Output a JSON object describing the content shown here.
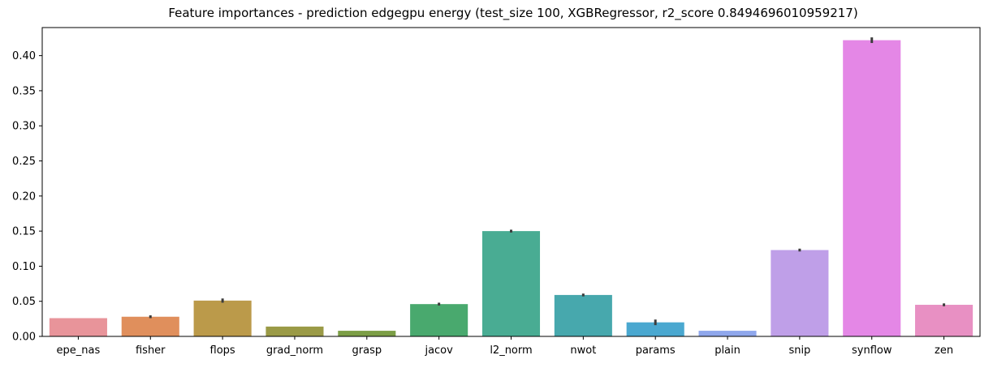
{
  "chart_data": {
    "type": "bar",
    "title": "Feature importances - prediction edgegpu energy (test_size 100, XGBRegressor, r2_score 0.8494696010959217)",
    "xlabel": "",
    "ylabel": "",
    "categories": [
      "epe_nas",
      "fisher",
      "flops",
      "grad_norm",
      "grasp",
      "jacov",
      "l2_norm",
      "nwot",
      "params",
      "plain",
      "snip",
      "synflow",
      "zen"
    ],
    "values": [
      0.026,
      0.028,
      0.051,
      0.014,
      0.008,
      0.046,
      0.15,
      0.059,
      0.02,
      0.008,
      0.123,
      0.422,
      0.045
    ],
    "error": [
      0.0,
      0.002,
      0.003,
      0.0,
      0.0,
      0.002,
      0.002,
      0.002,
      0.004,
      0.0,
      0.002,
      0.004,
      0.002
    ],
    "colors": [
      "#e8949a",
      "#e08f5c",
      "#bb9a4a",
      "#9a9a46",
      "#7c9e46",
      "#49a96e",
      "#49ac93",
      "#47a8ad",
      "#4aa8d0",
      "#8fa7ec",
      "#bf9fe8",
      "#e487e6",
      "#e890c3"
    ],
    "ylim": [
      0,
      0.44
    ],
    "yticks": [
      "0.00",
      "0.05",
      "0.10",
      "0.15",
      "0.20",
      "0.25",
      "0.30",
      "0.35",
      "0.40"
    ],
    "grid": false,
    "legend": "none"
  }
}
